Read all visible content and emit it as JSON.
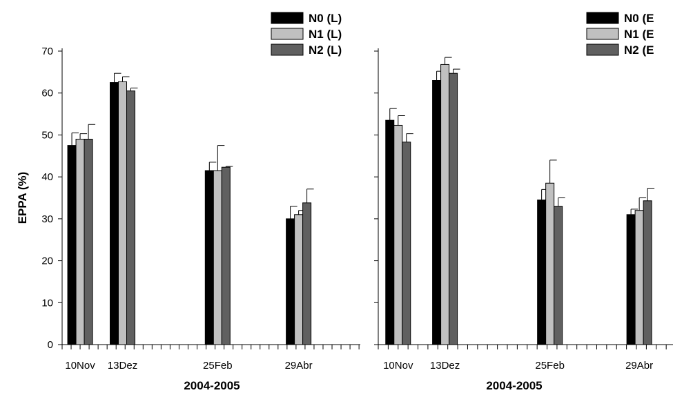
{
  "chart_data": [
    {
      "type": "bar",
      "panel": "left",
      "ylabel": "EPPA (%)",
      "xlabel": "2004-2005",
      "ylim": [
        0,
        70
      ],
      "yticks": [
        0,
        10,
        20,
        30,
        40,
        50,
        60,
        70
      ],
      "categories": [
        "10Nov",
        "13Dez",
        "25Feb",
        "29Abr"
      ],
      "category_days": [
        0,
        33,
        107,
        170
      ],
      "x_range_days": [
        -14,
        218
      ],
      "series": [
        {
          "name": "N0 (L)",
          "values": [
            47.5,
            62.5,
            41.5,
            30.0
          ],
          "errors": [
            3.0,
            2.2,
            2.0,
            3.0
          ]
        },
        {
          "name": "N1 (L)",
          "values": [
            49.0,
            62.7,
            41.5,
            31.0
          ],
          "errors": [
            1.3,
            1.2,
            6.0,
            1.0
          ]
        },
        {
          "name": "N2 (L)",
          "values": [
            49.0,
            60.5,
            42.3,
            33.8
          ],
          "errors": [
            3.5,
            0.7,
            0.2,
            3.3
          ]
        }
      ],
      "legend_position": "top-right"
    },
    {
      "type": "bar",
      "panel": "right",
      "xlabel": "2004-2005",
      "ylim": [
        0,
        70
      ],
      "yticks": [
        0,
        10,
        20,
        30,
        40,
        50,
        60,
        70
      ],
      "categories": [
        "10Nov",
        "13Dez",
        "25Feb",
        "29Abr"
      ],
      "category_days": [
        0,
        33,
        107,
        170
      ],
      "x_range_days": [
        -14,
        196
      ],
      "series": [
        {
          "name": "N0 (E",
          "values": [
            53.5,
            63.0,
            34.5,
            31.0
          ],
          "errors": [
            2.8,
            2.2,
            2.5,
            1.3
          ]
        },
        {
          "name": "N1 (E",
          "values": [
            52.3,
            66.8,
            38.5,
            32.0
          ],
          "errors": [
            2.3,
            1.7,
            5.5,
            3.0
          ]
        },
        {
          "name": "N2 (E",
          "values": [
            48.3,
            64.7,
            33.0,
            34.3
          ],
          "errors": [
            2.0,
            1.0,
            2.0,
            3.0
          ]
        }
      ],
      "legend_position": "top-right"
    }
  ],
  "series_colors": [
    "#000000",
    "#c0c0c0",
    "#606060"
  ]
}
